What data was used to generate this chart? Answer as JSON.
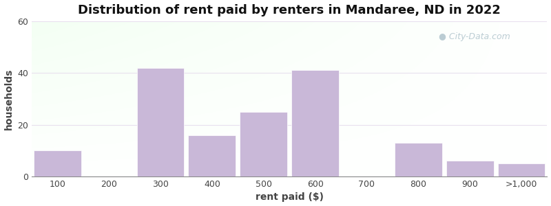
{
  "title": "Distribution of rent paid by renters in Mandaree, ND in 2022",
  "xlabel": "rent paid ($)",
  "ylabel": "households",
  "categories": [
    "100",
    "200",
    "300",
    "400",
    "500",
    "600",
    "700",
    "800",
    "900",
    ">1,000"
  ],
  "values": [
    10,
    0,
    42,
    16,
    25,
    41,
    0,
    13,
    6,
    5
  ],
  "bar_color": "#c9b8d8",
  "bar_edgecolor": "#c9b8d8",
  "ylim": [
    0,
    60
  ],
  "yticks": [
    0,
    20,
    40,
    60
  ],
  "title_fontsize": 13,
  "label_fontsize": 10,
  "tick_fontsize": 9,
  "watermark_text": "City-Data.com",
  "watermark_color": "#b0c4cc",
  "grid_color": "#e8e0ee",
  "fig_bg": "#ffffff"
}
